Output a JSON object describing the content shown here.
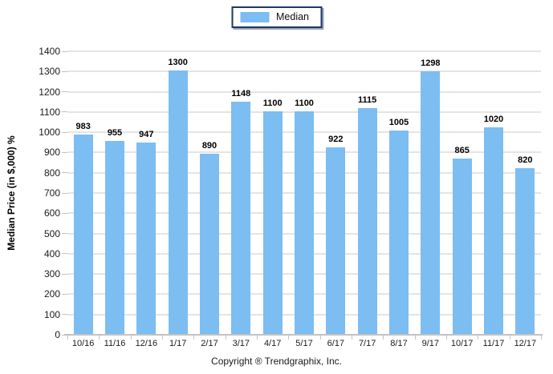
{
  "legend": {
    "label": "Median"
  },
  "chart_data": {
    "type": "bar",
    "categories": [
      "10/16",
      "11/16",
      "12/16",
      "1/17",
      "2/17",
      "3/17",
      "4/17",
      "5/17",
      "6/17",
      "7/17",
      "8/17",
      "9/17",
      "10/17",
      "11/17",
      "12/17"
    ],
    "series": [
      {
        "name": "Median",
        "values": [
          983,
          955,
          947,
          1300,
          890,
          1148,
          1100,
          1100,
          922,
          1115,
          1005,
          1298,
          865,
          1020,
          820
        ]
      }
    ],
    "title": "",
    "xlabel": "",
    "ylabel": "Median Price (in $,000) %",
    "ylim": [
      0,
      1400
    ],
    "ytick_step": 100,
    "grid": true,
    "legend_position": "top-center",
    "footer": "Copyright ® Trendgraphix, Inc."
  },
  "colors": {
    "bar": "#7CBDF2",
    "gridline": "#E4E4E4",
    "axis_line": "#C2C2C2",
    "legend_border": "#1F3864",
    "text": "#1A1A1A"
  }
}
